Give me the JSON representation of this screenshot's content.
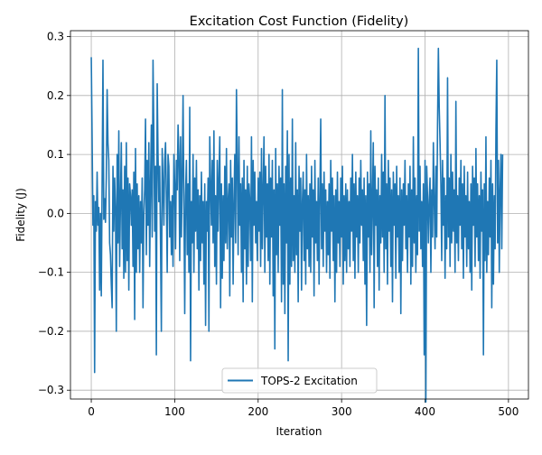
{
  "chart_data": {
    "type": "line",
    "title": "Excitation Cost Function (Fidelity)",
    "xlabel": "Iteration",
    "ylabel": "Fidelity (J)",
    "xlim": [
      -24.95,
      523.95
    ],
    "ylim": [
      -0.315,
      0.31
    ],
    "x_ticks": [
      0,
      100,
      200,
      300,
      400,
      500
    ],
    "y_ticks": [
      -0.3,
      -0.2,
      -0.1,
      0.0,
      0.1,
      0.2,
      0.3
    ],
    "x_tick_labels": [
      "0",
      "100",
      "200",
      "300",
      "400",
      "500"
    ],
    "y_tick_labels": [
      "−0.3",
      "−0.2",
      "−0.1",
      "0.0",
      "0.1",
      "0.2",
      "0.3"
    ],
    "grid": true,
    "legend": {
      "placement": "lower-center"
    },
    "series": [
      {
        "name": "TOPS-2 Excitation",
        "color": "#1f77b4",
        "x_start": 0,
        "x_step": 1,
        "values": [
          0.265,
          0.13,
          -0.02,
          0.03,
          -0.27,
          0.02,
          -0.03,
          0.07,
          -0.02,
          0.01,
          -0.13,
          0.0,
          -0.14,
          0.05,
          0.26,
          -0.01,
          0.025,
          -0.015,
          0.06,
          0.21,
          0.12,
          0.09,
          -0.05,
          -0.07,
          -0.12,
          -0.16,
          0.08,
          -0.03,
          0.06,
          0.01,
          -0.2,
          0.1,
          -0.05,
          0.14,
          -0.09,
          0.02,
          0.12,
          -0.06,
          0.04,
          -0.11,
          0.08,
          -0.1,
          0.12,
          -0.08,
          0.06,
          -0.13,
          0.05,
          0.03,
          -0.02,
          0.04,
          -0.09,
          0.07,
          -0.18,
          0.11,
          -0.1,
          0.05,
          -0.06,
          0.03,
          -0.1,
          0.02,
          -0.05,
          0.06,
          -0.16,
          0.0,
          0.04,
          0.16,
          -0.07,
          0.09,
          -0.02,
          0.12,
          -0.09,
          0.05,
          0.15,
          -0.04,
          0.26,
          0.13,
          -0.03,
          0.08,
          -0.24,
          0.22,
          0.1,
          0.02,
          0.08,
          -0.05,
          -0.2,
          0.11,
          0.05,
          -0.02,
          0.09,
          0.12,
          0.03,
          -0.1,
          0.1,
          0.08,
          -0.04,
          0.02,
          -0.07,
          0.03,
          -0.09,
          0.1,
          0.05,
          -0.06,
          0.09,
          0.04,
          0.15,
          0.1,
          -0.08,
          0.13,
          -0.04,
          0.06,
          0.2,
          0.02,
          -0.17,
          0.03,
          0.09,
          -0.07,
          0.05,
          -0.1,
          0.18,
          -0.25,
          0.02,
          -0.05,
          0.1,
          -0.1,
          0.06,
          -0.03,
          0.09,
          -0.06,
          0.04,
          -0.13,
          0.03,
          -0.08,
          0.07,
          -0.05,
          0.02,
          -0.12,
          0.05,
          -0.19,
          0.02,
          -0.03,
          0.06,
          -0.2,
          0.13,
          0.05,
          -0.02,
          0.09,
          -0.05,
          0.14,
          -0.09,
          0.03,
          -0.12,
          0.09,
          -0.03,
          0.06,
          0.13,
          -0.16,
          0.05,
          -0.11,
          0.03,
          -0.08,
          0.08,
          -0.05,
          0.11,
          -0.06,
          0.02,
          0.05,
          -0.14,
          0.09,
          -0.04,
          0.06,
          -0.12,
          0.02,
          0.1,
          -0.05,
          0.21,
          0.08,
          -0.07,
          0.13,
          -0.02,
          0.05,
          -0.1,
          0.06,
          -0.15,
          0.09,
          -0.06,
          0.04,
          -0.12,
          0.08,
          -0.09,
          0.05,
          0.02,
          -0.08,
          0.13,
          -0.15,
          0.09,
          -0.02,
          0.07,
          -0.05,
          0.02,
          -0.08,
          0.06,
          -0.03,
          0.07,
          -0.09,
          0.11,
          -0.06,
          0.04,
          0.13,
          -0.1,
          0.08,
          -0.04,
          0.05,
          -0.08,
          0.1,
          -0.12,
          0.06,
          -0.04,
          0.09,
          -0.14,
          0.04,
          -0.23,
          0.11,
          -0.07,
          0.05,
          -0.1,
          0.08,
          -0.02,
          0.06,
          -0.15,
          0.21,
          -0.12,
          0.05,
          -0.17,
          0.08,
          -0.05,
          0.14,
          -0.25,
          0.1,
          -0.12,
          0.06,
          -0.09,
          0.16,
          -0.08,
          0.03,
          -0.1,
          0.12,
          -0.07,
          0.04,
          -0.15,
          0.08,
          -0.03,
          0.06,
          -0.13,
          0.02,
          0.07,
          -0.08,
          0.04,
          -0.12,
          0.1,
          -0.06,
          0.03,
          -0.09,
          0.05,
          -0.1,
          0.08,
          -0.04,
          0.04,
          -0.14,
          0.09,
          -0.05,
          0.02,
          -0.08,
          0.06,
          -0.12,
          0.03,
          0.16,
          -0.06,
          0.05,
          -0.09,
          0.07,
          -0.03,
          0.04,
          -0.1,
          0.02,
          -0.07,
          0.05,
          -0.11,
          0.09,
          -0.03,
          0.06,
          -0.08,
          0.03,
          -0.15,
          0.04,
          -0.1,
          0.07,
          -0.05,
          0.02,
          -0.09,
          0.06,
          -0.04,
          0.08,
          -0.12,
          0.03,
          -0.08,
          0.05,
          -0.1,
          0.04,
          -0.06,
          0.02,
          -0.09,
          0.06,
          -0.03,
          0.1,
          -0.08,
          0.05,
          -0.11,
          0.07,
          -0.04,
          0.03,
          -0.1,
          0.06,
          -0.05,
          0.09,
          -0.02,
          0.04,
          -0.08,
          0.06,
          -0.12,
          0.03,
          -0.19,
          0.07,
          -0.04,
          0.05,
          -0.1,
          0.14,
          -0.07,
          0.02,
          0.12,
          -0.16,
          0.08,
          -0.02,
          0.04,
          -0.09,
          0.06,
          -0.13,
          0.03,
          -0.05,
          0.1,
          -0.04,
          0.07,
          -0.1,
          0.2,
          -0.06,
          0.05,
          -0.12,
          0.09,
          -0.03,
          0.06,
          -0.09,
          0.04,
          -0.15,
          0.07,
          -0.02,
          0.05,
          -0.11,
          0.08,
          -0.04,
          0.03,
          -0.1,
          0.06,
          -0.17,
          0.04,
          -0.08,
          0.05,
          -0.02,
          0.09,
          -0.06,
          0.03,
          -0.1,
          0.05,
          -0.04,
          0.08,
          -0.12,
          0.04,
          -0.09,
          0.13,
          -0.05,
          0.06,
          -0.1,
          0.03,
          -0.07,
          0.28,
          -0.03,
          0.08,
          -0.06,
          0.02,
          -0.09,
          0.05,
          -0.24,
          0.09,
          -0.32,
          0.08,
          0.03,
          -0.05,
          0.02,
          0.06,
          -0.1,
          0.04,
          -0.04,
          0.12,
          0.02,
          -0.06,
          0.08,
          -0.04,
          0.15,
          0.28,
          0.18,
          0.12,
          0.05,
          -0.08,
          0.09,
          -0.02,
          0.06,
          -0.11,
          0.03,
          -0.06,
          0.23,
          -0.04,
          0.06,
          -0.09,
          0.1,
          -0.05,
          0.07,
          -0.03,
          0.04,
          -0.1,
          0.19,
          -0.05,
          0.03,
          -0.08,
          0.06,
          -0.02,
          0.09,
          -0.06,
          0.05,
          -0.11,
          0.08,
          -0.04,
          0.03,
          -0.09,
          0.07,
          -0.06,
          0.02,
          -0.1,
          0.05,
          -0.13,
          0.08,
          -0.02,
          0.06,
          -0.09,
          0.11,
          -0.04,
          0.05,
          -0.08,
          0.03,
          -0.11,
          0.07,
          -0.03,
          0.04,
          -0.24,
          0.05,
          -0.08,
          0.13,
          -0.1,
          0.02,
          -0.07,
          0.06,
          -0.04,
          0.09,
          -0.16,
          0.05,
          -0.12,
          0.03,
          -0.06,
          0.14,
          0.26,
          -0.05,
          0.09,
          -0.1,
          0.04,
          0.1,
          -0.06,
          0.1
        ]
      }
    ]
  }
}
